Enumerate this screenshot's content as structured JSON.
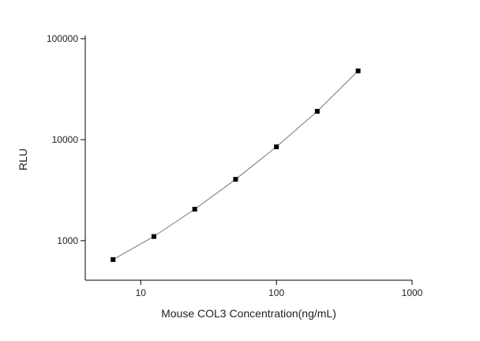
{
  "chart_data": {
    "type": "scatter",
    "x_label": "Mouse COL3 Concentration(ng/mL)",
    "y_label": "RLU",
    "x_scale": "log",
    "y_scale": "log",
    "xlim": [
      3.9,
      1000
    ],
    "ylim": [
      406,
      100000
    ],
    "xticks": [
      10,
      100,
      1000
    ],
    "yticks": [
      1000,
      10000,
      100000
    ],
    "series": [
      {
        "color": "#000000",
        "line_color": "#777777",
        "x": [
          6.25,
          12.5,
          25,
          50,
          100,
          200,
          400
        ],
        "values": [
          650,
          1100,
          2050,
          4050,
          8500,
          19100,
          48000
        ]
      }
    ]
  }
}
